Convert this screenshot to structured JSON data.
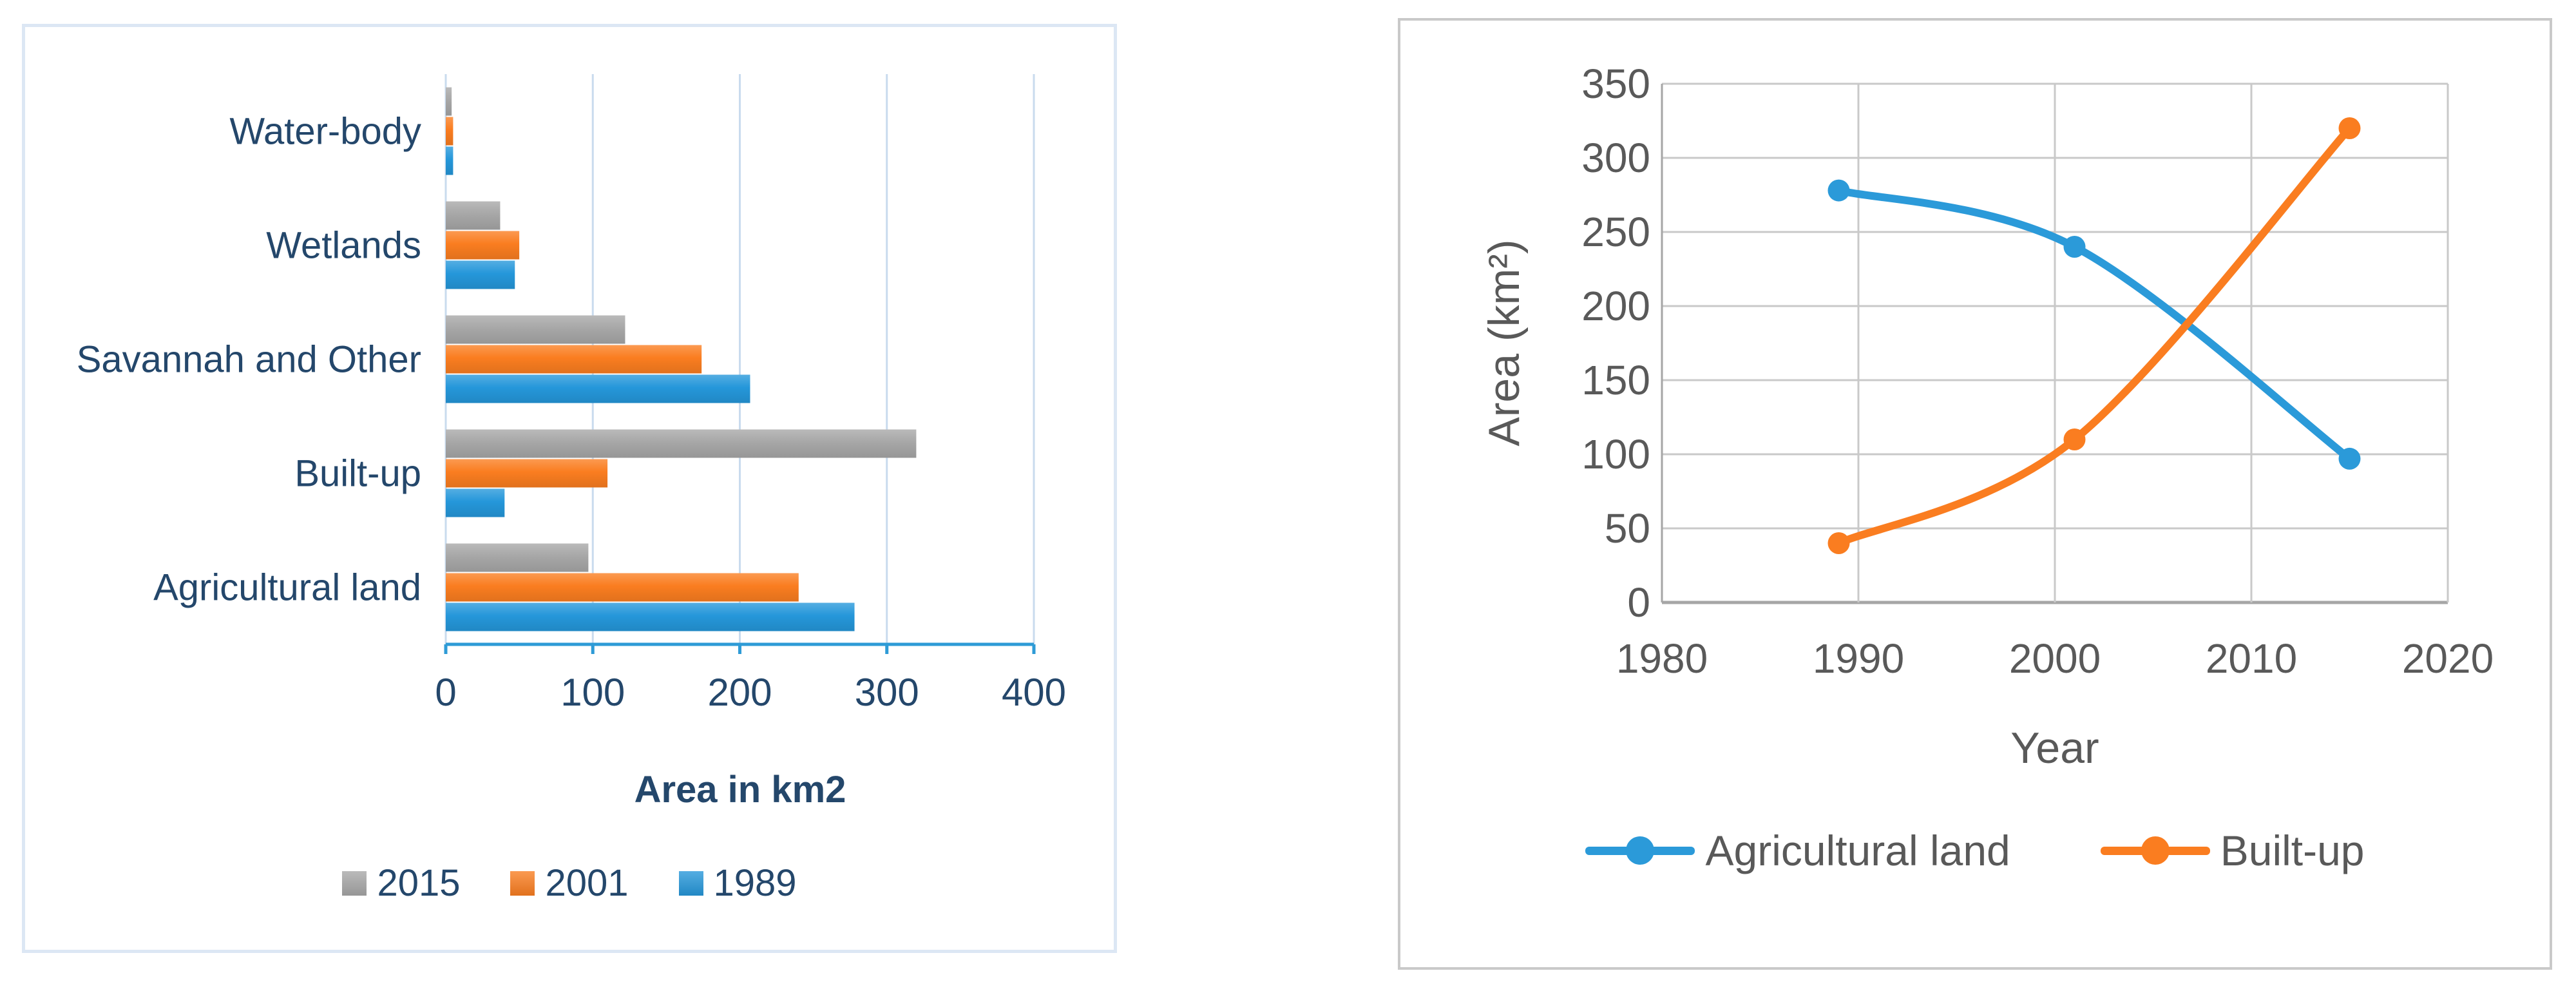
{
  "figure": {
    "background": "#ffffff",
    "left_panel_border": "#dce7f4",
    "right_panel_border": "#c9c9c9"
  },
  "chart_data": [
    {
      "type": "bar",
      "orientation": "horizontal",
      "title": "",
      "categories": [
        "Water-body",
        "Wetlands",
        "Savannah and Other",
        "Built-up",
        "Agricultural land"
      ],
      "series": [
        {
          "name": "2015",
          "color": "#a7a7a7",
          "values": [
            4,
            37,
            122,
            320,
            97
          ]
        },
        {
          "name": "2001",
          "color": "#fa7d20",
          "values": [
            5,
            50,
            174,
            110,
            240
          ]
        },
        {
          "name": "1989",
          "color": "#2597da",
          "values": [
            5,
            47,
            207,
            40,
            278
          ]
        }
      ],
      "xlabel": "Area in km2",
      "xlim": [
        0,
        400
      ],
      "xticks": [
        "0",
        "100",
        "200",
        "300",
        "400"
      ],
      "grid": "vertical",
      "legend_position": "bottom",
      "axis_color": "#2e9bd6",
      "gridline_color": "#c9dbee",
      "text_color": "#24476b"
    },
    {
      "type": "line",
      "smooth": true,
      "marker": "circle",
      "title": "",
      "xlabel": "Year",
      "ylabel": "Area (km²)",
      "xlim": [
        1980,
        2020
      ],
      "ylim": [
        0,
        350
      ],
      "xticks": [
        "1980",
        "1990",
        "2000",
        "2010",
        "2020"
      ],
      "yticks": [
        "0",
        "50",
        "100",
        "150",
        "200",
        "250",
        "300",
        "350"
      ],
      "series": [
        {
          "name": "Agricultural land",
          "color": "#2b9ad9",
          "x": [
            1989,
            2001,
            2015
          ],
          "y": [
            278,
            240,
            97
          ]
        },
        {
          "name": "Built-up",
          "color": "#fa7d20",
          "x": [
            1989,
            2001,
            2015
          ],
          "y": [
            40,
            110,
            320
          ]
        }
      ],
      "grid": true,
      "legend_position": "bottom",
      "gridline_color": "#c9c9c9",
      "axis_color": "#a6a6a6",
      "text_color": "#595959"
    }
  ]
}
